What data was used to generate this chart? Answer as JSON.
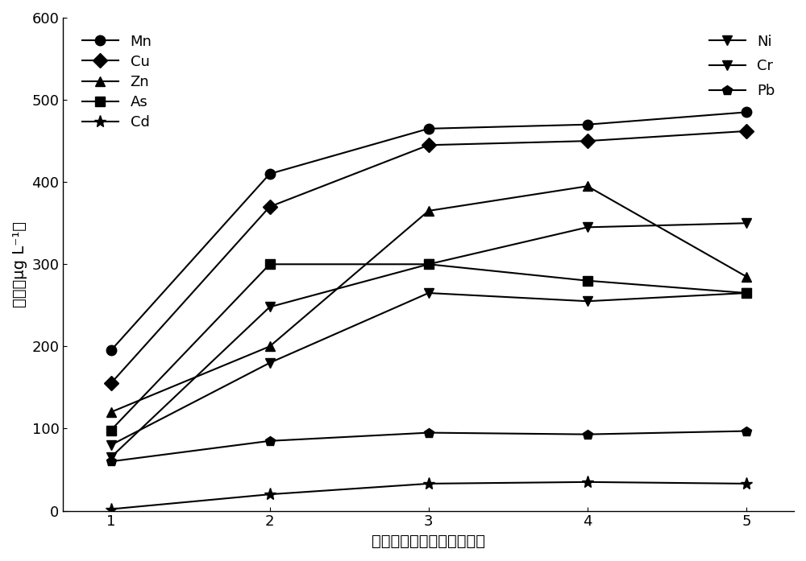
{
  "x": [
    1,
    2,
    3,
    4,
    5
  ],
  "series": {
    "Mn": [
      195,
      410,
      465,
      470,
      485
    ],
    "Cu": [
      155,
      370,
      445,
      450,
      462
    ],
    "Zn": [
      120,
      200,
      365,
      395,
      285
    ],
    "As": [
      98,
      300,
      300,
      280,
      265
    ],
    "Cd": [
      2,
      20,
      33,
      35,
      33
    ],
    "Ni": [
      80,
      180,
      265,
      255,
      265
    ],
    "Cr": [
      65,
      248,
      300,
      345,
      350
    ],
    "Pb": [
      60,
      85,
      95,
      93,
      97
    ]
  },
  "markers": {
    "Mn": "o",
    "Cu": "D",
    "Zn": "^",
    "As": "s",
    "Cd": "*",
    "Ni": "v",
    "Cr": "v",
    "Pb": "p"
  },
  "linestyles": {
    "Mn": "-",
    "Cu": "-",
    "Zn": "-",
    "As": "-",
    "Cd": "-",
    "Ni": "-",
    "Cr": "-",
    "Pb": "-"
  },
  "color": "#000000",
  "xlabel": "在水体中放置的时间（天）",
  "ylabel": "浓度（μg L⁻¹）",
  "ylim": [
    0,
    600
  ],
  "yticks": [
    0,
    100,
    200,
    300,
    400,
    500,
    600
  ],
  "xticks": [
    1,
    2,
    3,
    4,
    5
  ],
  "legend_left": [
    "Mn",
    "Cu",
    "Zn",
    "As",
    "Cd"
  ],
  "legend_right": [
    "Ni",
    "Cr",
    "Pb"
  ],
  "markersize": 9,
  "linewidth": 1.5,
  "fontsize_label": 14,
  "fontsize_tick": 13,
  "fontsize_legend": 13
}
